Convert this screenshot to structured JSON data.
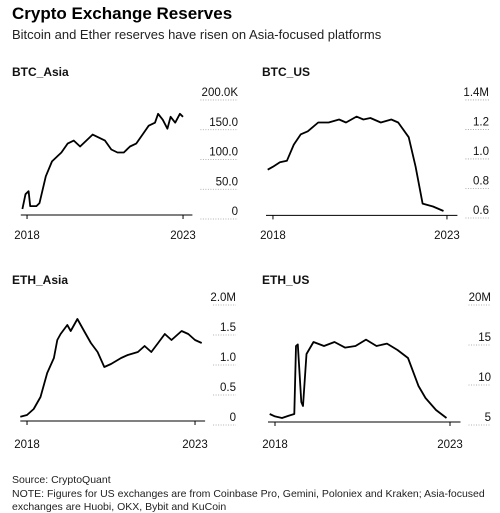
{
  "title": "Crypto Exchange Reserves",
  "subtitle": "Bitcoin and Ether reserves have risen on Asia-focused platforms",
  "source": "Source: CryptoQuant",
  "note": "NOTE: Figures for US exchanges are from Coinbase Pro, Gemini, Poloniex and Kraken; Asia-focused exchanges are Huobi, OKX, Bybit and KuCoin",
  "chart_data": [
    {
      "type": "line",
      "title": "BTC_Asia",
      "color": "#000000",
      "x": [
        2017.85,
        2017.95,
        2018.05,
        2018.1,
        2018.3,
        2018.4,
        2018.6,
        2018.8,
        2019.0,
        2019.1,
        2019.3,
        2019.5,
        2019.7,
        2019.9,
        2020.1,
        2020.3,
        2020.5,
        2020.7,
        2020.9,
        2021.1,
        2021.3,
        2021.5,
        2021.7,
        2021.9,
        2022.1,
        2022.2,
        2022.35,
        2022.5,
        2022.6,
        2022.75,
        2022.9,
        2023.0
      ],
      "values": [
        5000,
        30000,
        35000,
        10000,
        10000,
        15000,
        60000,
        85000,
        95000,
        100000,
        115000,
        120000,
        110000,
        120000,
        130000,
        125000,
        120000,
        105000,
        100000,
        100000,
        110000,
        115000,
        130000,
        145000,
        150000,
        165000,
        155000,
        140000,
        160000,
        150000,
        165000,
        160000
      ],
      "xlim": [
        2017.8,
        2023.3
      ],
      "xticks": [
        2018,
        2023
      ],
      "ylim": [
        -5000,
        205000
      ],
      "yticks": [
        0,
        {
          "value": 50000,
          "label": "50.0"
        },
        {
          "value": 100000,
          "label": "100.0"
        },
        {
          "value": 150000,
          "label": "150.0"
        },
        {
          "value": 200000,
          "label": "200.0K"
        }
      ]
    },
    {
      "type": "line",
      "title": "BTC_US",
      "color": "#000000",
      "x": [
        2017.85,
        2018.0,
        2018.2,
        2018.4,
        2018.6,
        2018.8,
        2019.0,
        2019.3,
        2019.6,
        2019.9,
        2020.1,
        2020.4,
        2020.6,
        2020.8,
        2021.1,
        2021.4,
        2021.6,
        2021.9,
        2022.1,
        2022.3,
        2022.6,
        2022.9
      ],
      "values": [
        0.88,
        0.9,
        0.93,
        0.94,
        1.05,
        1.12,
        1.14,
        1.2,
        1.2,
        1.22,
        1.2,
        1.24,
        1.22,
        1.23,
        1.2,
        1.22,
        1.2,
        1.1,
        0.9,
        0.65,
        0.63,
        0.6
      ],
      "xlim": [
        2017.8,
        2023.3
      ],
      "xticks": [
        2018,
        2023
      ],
      "ylim": [
        0.57,
        1.42
      ],
      "yticks": [
        0.6,
        0.8,
        {
          "value": 1,
          "label": "1.0"
        },
        1.2,
        {
          "value": 1.4,
          "label": "1.4M"
        }
      ]
    },
    {
      "type": "line",
      "title": "ETH_Asia",
      "color": "#000000",
      "x": [
        2017.8,
        2018.0,
        2018.2,
        2018.4,
        2018.6,
        2018.8,
        2018.9,
        2019.0,
        2019.2,
        2019.3,
        2019.5,
        2019.7,
        2019.9,
        2020.1,
        2020.3,
        2020.5,
        2020.8,
        2021.0,
        2021.3,
        2021.5,
        2021.7,
        2021.9,
        2022.1,
        2022.3,
        2022.6,
        2022.8,
        2023.0,
        2023.2
      ],
      "values": [
        0.02,
        0.05,
        0.15,
        0.35,
        0.75,
        1.0,
        1.3,
        1.4,
        1.55,
        1.45,
        1.65,
        1.45,
        1.25,
        1.1,
        0.85,
        0.9,
        1.0,
        1.05,
        1.1,
        1.2,
        1.1,
        1.25,
        1.4,
        1.3,
        1.45,
        1.4,
        1.3,
        1.25
      ],
      "xlim": [
        2017.8,
        2023.3
      ],
      "xticks": [
        2018,
        2023
      ],
      "ylim": [
        -0.05,
        2.05
      ],
      "yticks": [
        0,
        0.5,
        {
          "value": 1,
          "label": "1.0"
        },
        1.5,
        {
          "value": 2,
          "label": "2.0M"
        }
      ]
    },
    {
      "type": "line",
      "title": "ETH_US",
      "color": "#000000",
      "x": [
        2017.85,
        2018.0,
        2018.2,
        2018.4,
        2018.55,
        2018.6,
        2018.65,
        2018.75,
        2018.8,
        2018.9,
        2019.1,
        2019.4,
        2019.7,
        2020.0,
        2020.3,
        2020.6,
        2020.9,
        2021.2,
        2021.5,
        2021.8,
        2022.1,
        2022.3,
        2022.6,
        2022.9
      ],
      "values": [
        5.5,
        5.2,
        5,
        5.3,
        5.5,
        14,
        14.2,
        7,
        6.5,
        13,
        14.5,
        14,
        14.5,
        13.8,
        14,
        14.8,
        14,
        14.3,
        13.5,
        12.5,
        9,
        7.5,
        6,
        5
      ],
      "xlim": [
        2017.8,
        2023.3
      ],
      "xticks": [
        2018,
        2023
      ],
      "ylim": [
        4.5,
        20.5
      ],
      "yticks": [
        5,
        10,
        15,
        {
          "value": 20,
          "label": "20M"
        }
      ]
    }
  ]
}
